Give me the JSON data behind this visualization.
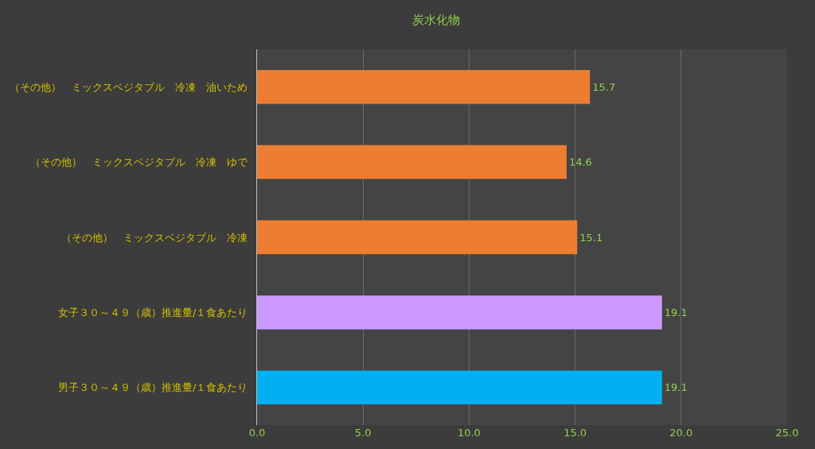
{
  "chart_data": {
    "type": "bar",
    "orientation": "horizontal",
    "title": "炭水化物",
    "categories": [
      "（その他）　ミックスベジタブル　冷凍　油いため",
      "（その他）　ミックスベジタブル　冷凍　ゆで",
      "（その他）　ミックスベジタブル　冷凍",
      "女子３０～４９（歳）推進量/１食あたり",
      "男子３０～４９（歳）推進量/１食あたり"
    ],
    "values": [
      15.7,
      14.6,
      15.1,
      19.1,
      19.1
    ],
    "colors": [
      "#ed7d31",
      "#ed7d31",
      "#ed7d31",
      "#cc99ff",
      "#00b0f0"
    ],
    "xlim": [
      0,
      25
    ],
    "xticks": [
      {
        "value": 0,
        "label": "0.0"
      },
      {
        "value": 5,
        "label": "5.0"
      },
      {
        "value": 10,
        "label": "10.0"
      },
      {
        "value": 15,
        "label": "15.0"
      },
      {
        "value": 20,
        "label": "20.0"
      },
      {
        "value": 25,
        "label": "25.0"
      }
    ],
    "grid": "x",
    "data_labels": true
  }
}
